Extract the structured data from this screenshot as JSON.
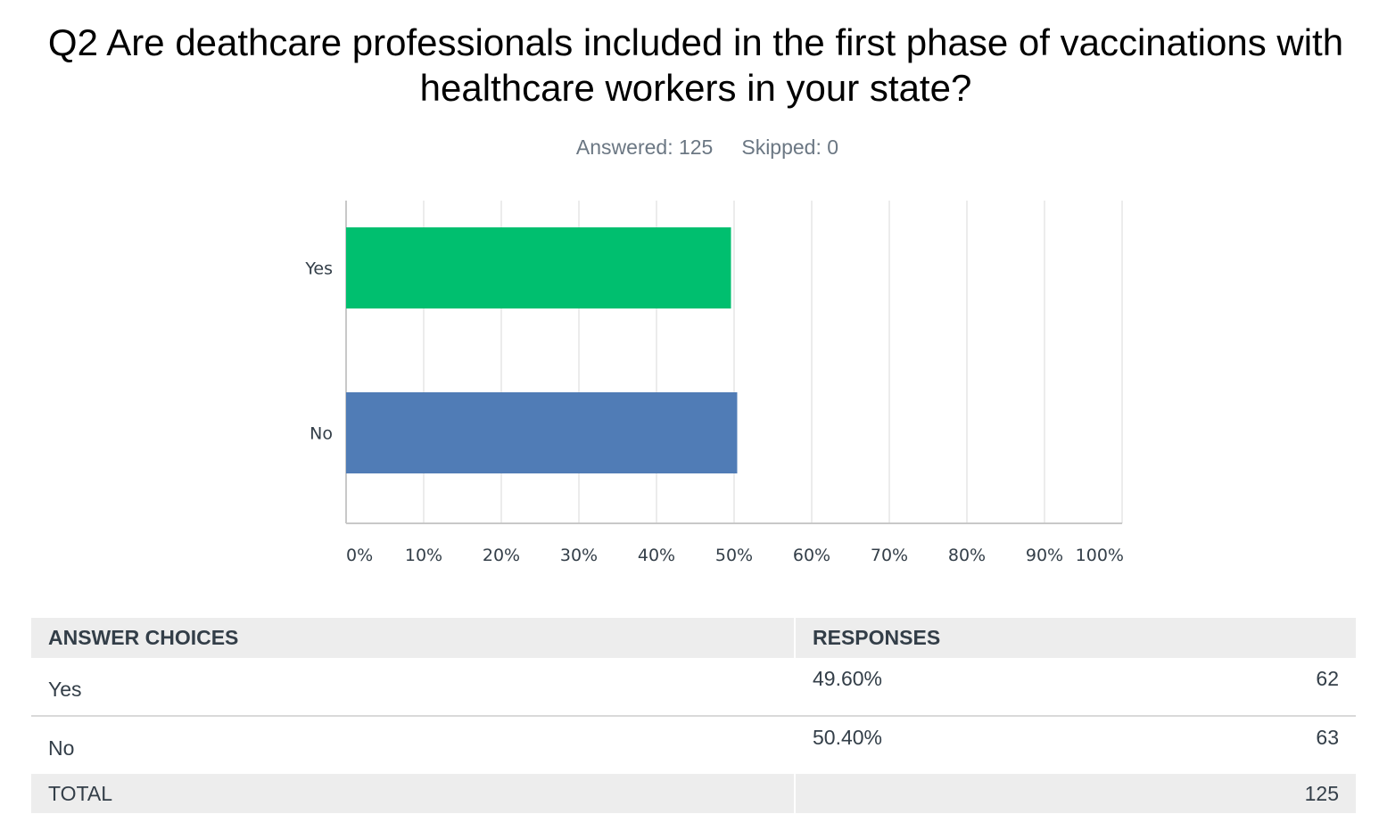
{
  "question": {
    "title": "Q2 Are deathcare professionals included in the first phase of vaccinations with healthcare workers in your state?",
    "answered_label": "Answered: 125",
    "skipped_label": "Skipped: 0"
  },
  "chart_data": {
    "type": "bar",
    "orientation": "horizontal",
    "categories": [
      "Yes",
      "No"
    ],
    "values": [
      49.6,
      50.4
    ],
    "colors": [
      "#00bf6f",
      "#507cb6"
    ],
    "xlim": [
      0,
      100
    ],
    "xticks": [
      "0%",
      "10%",
      "20%",
      "30%",
      "40%",
      "50%",
      "60%",
      "70%",
      "80%",
      "90%",
      "100%"
    ],
    "grid": true,
    "title": "",
    "xlabel": "",
    "ylabel": ""
  },
  "table": {
    "headers": {
      "choices": "ANSWER CHOICES",
      "responses": "RESPONSES"
    },
    "rows": [
      {
        "choice": "Yes",
        "percent": "49.60%",
        "count": "62"
      },
      {
        "choice": "No",
        "percent": "50.40%",
        "count": "63"
      }
    ],
    "total_label": "TOTAL",
    "total_count": "125"
  }
}
